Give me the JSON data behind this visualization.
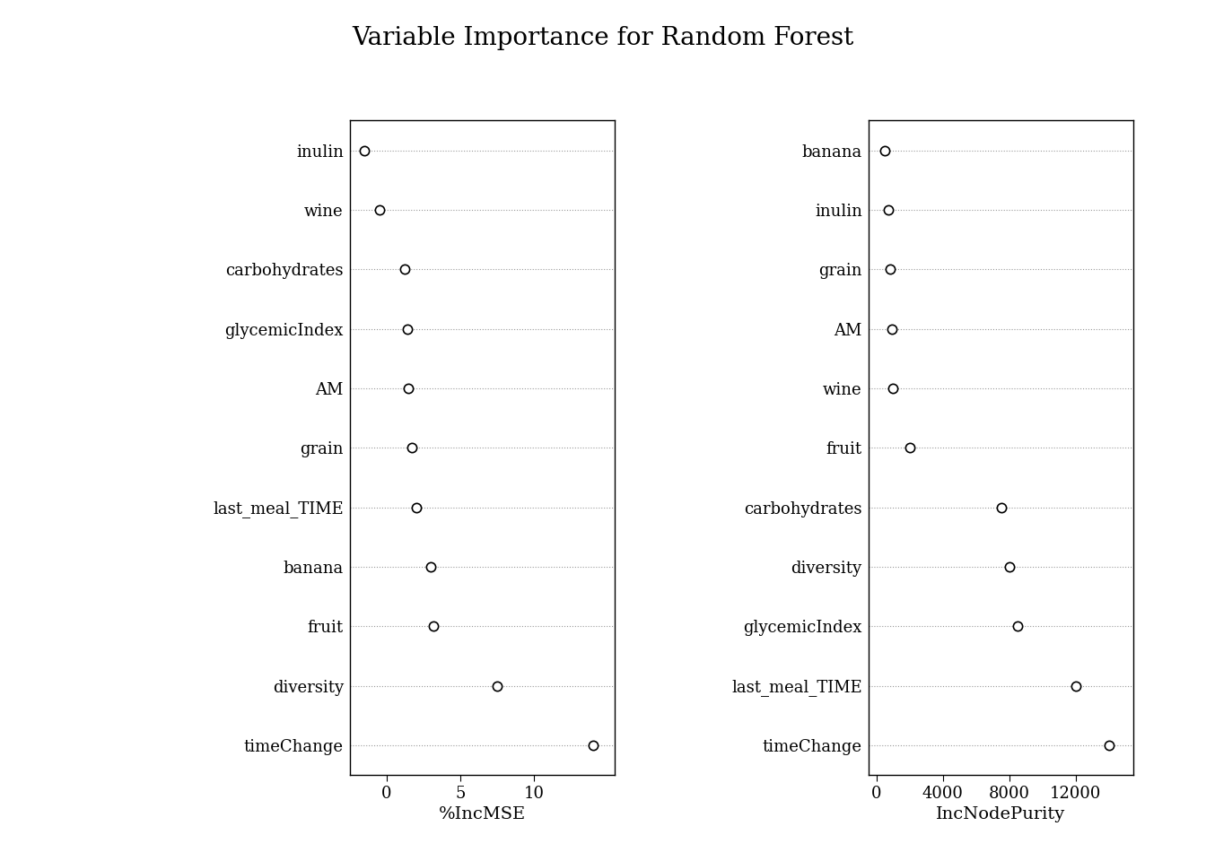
{
  "title": "Variable Importance for Random Forest",
  "left_panel": {
    "xlabel": "%IncMSE",
    "variables": [
      "timeChange",
      "diversity",
      "fruit",
      "banana",
      "last_meal_TIME",
      "grain",
      "AM",
      "glycemicIndex",
      "carbohydrates",
      "wine",
      "inulin"
    ],
    "values": [
      14.0,
      7.5,
      3.2,
      3.0,
      2.0,
      1.7,
      1.5,
      1.4,
      1.2,
      -0.5,
      -1.5
    ],
    "xlim": [
      -2.5,
      15.5
    ],
    "xticks": [
      0,
      5,
      10
    ],
    "xticklabels": [
      "0",
      "5",
      "10"
    ]
  },
  "right_panel": {
    "xlabel": "IncNodePurity",
    "variables": [
      "timeChange",
      "last_meal_TIME",
      "glycemicIndex",
      "diversity",
      "carbohydrates",
      "fruit",
      "wine",
      "AM",
      "grain",
      "inulin",
      "banana"
    ],
    "values": [
      14000,
      12000,
      8500,
      8000,
      7500,
      2000,
      1000,
      900,
      800,
      700,
      500
    ],
    "xlim": [
      -500,
      15500
    ],
    "xticks": [
      0,
      4000,
      8000,
      12000
    ],
    "xticklabels": [
      "0",
      "4000",
      "8000",
      "12000"
    ]
  },
  "background_color": "#ffffff",
  "dot_facecolor": "#ffffff",
  "dot_edgecolor": "#000000",
  "dot_size": 55,
  "dot_linewidth": 1.2,
  "grid_color": "#999999",
  "grid_linestyle": ":",
  "grid_linewidth": 0.8,
  "spine_color": "#000000",
  "title_fontsize": 20,
  "label_fontsize": 13,
  "xlabel_fontsize": 14,
  "font_family": "serif"
}
